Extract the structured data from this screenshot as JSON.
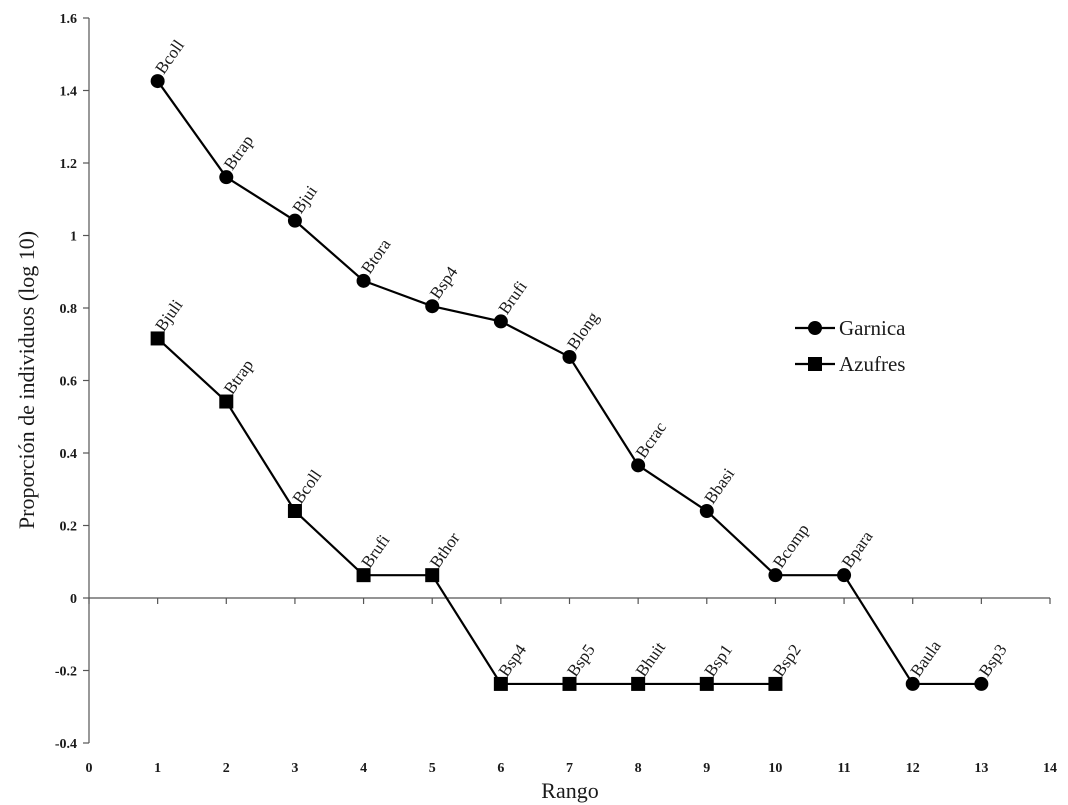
{
  "chart_data": {
    "type": "line",
    "title": "",
    "xlabel": "Rango",
    "ylabel": "Proporción de individuos (log 10)",
    "xlim": [
      0,
      14
    ],
    "ylim": [
      -0.4,
      1.6
    ],
    "xticks": [
      0,
      1,
      2,
      3,
      4,
      5,
      6,
      7,
      8,
      9,
      10,
      11,
      12,
      13,
      14
    ],
    "yticks": [
      -0.4,
      -0.2,
      0,
      0.2,
      0.4,
      0.6,
      0.8,
      1,
      1.2,
      1.4,
      1.6
    ],
    "ytick_labels": [
      "-0.4",
      "-0.2",
      "0",
      "0.2",
      "0.4",
      "0.6",
      "0.8",
      "1",
      "1.2",
      "1.4",
      "1.6"
    ],
    "grid": false,
    "legend_position": "right",
    "series": [
      {
        "name": "Garnica",
        "marker": "circle",
        "color": "#000000",
        "points": [
          {
            "x": 1,
            "y": 1.426,
            "label": "Bcoll"
          },
          {
            "x": 2,
            "y": 1.161,
            "label": "Btrap"
          },
          {
            "x": 3,
            "y": 1.041,
            "label": "Bjui"
          },
          {
            "x": 4,
            "y": 0.875,
            "label": "Btora"
          },
          {
            "x": 5,
            "y": 0.805,
            "label": "Bsp4"
          },
          {
            "x": 6,
            "y": 0.763,
            "label": "Brufi"
          },
          {
            "x": 7,
            "y": 0.665,
            "label": "Blong"
          },
          {
            "x": 8,
            "y": 0.366,
            "label": "Bcrac"
          },
          {
            "x": 9,
            "y": 0.24,
            "label": "Bbasi"
          },
          {
            "x": 10,
            "y": 0.063,
            "label": "Bcomp"
          },
          {
            "x": 11,
            "y": 0.063,
            "label": "Bpara"
          },
          {
            "x": 12,
            "y": -0.237,
            "label": "Baula"
          },
          {
            "x": 13,
            "y": -0.237,
            "label": "Bsp3"
          }
        ]
      },
      {
        "name": "Azufres",
        "marker": "square",
        "color": "#000000",
        "points": [
          {
            "x": 1,
            "y": 0.716,
            "label": "Bjuli"
          },
          {
            "x": 2,
            "y": 0.542,
            "label": "Btrap"
          },
          {
            "x": 3,
            "y": 0.24,
            "label": "Bcoll"
          },
          {
            "x": 4,
            "y": 0.063,
            "label": "Brufi"
          },
          {
            "x": 5,
            "y": 0.063,
            "label": "Bthor"
          },
          {
            "x": 6,
            "y": -0.237,
            "label": "Bsp4"
          },
          {
            "x": 7,
            "y": -0.237,
            "label": "Bsp5"
          },
          {
            "x": 8,
            "y": -0.237,
            "label": "Bhuit"
          },
          {
            "x": 9,
            "y": -0.237,
            "label": "Bsp1"
          },
          {
            "x": 10,
            "y": -0.237,
            "label": "Bsp2"
          }
        ]
      }
    ]
  }
}
